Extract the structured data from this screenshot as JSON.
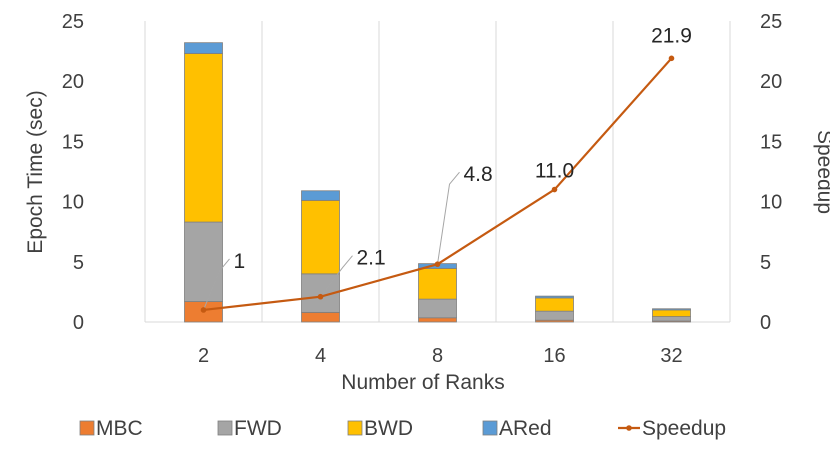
{
  "chart_data": {
    "type": "bar",
    "subtype": "stacked-bar-with-line-secondary-axis",
    "title": "",
    "categories": [
      "2",
      "4",
      "8",
      "16",
      "32"
    ],
    "xlabel": "Number of Ranks",
    "ylabel": "Epoch Time (sec)",
    "y2label": "Speedup",
    "ylim": [
      0,
      25
    ],
    "y2lim": [
      0,
      25
    ],
    "yticks": [
      "0",
      "5",
      "10",
      "15",
      "20",
      "25"
    ],
    "y2ticks": [
      "0",
      "5",
      "10",
      "15",
      "20",
      "25"
    ],
    "grid": "vertical",
    "legend_position": "bottom",
    "series": [
      {
        "name": "MBC",
        "kind": "bar",
        "color": "#ED7D31",
        "values": [
          1.7,
          0.8,
          0.35,
          0.15,
          0.08
        ]
      },
      {
        "name": "FWD",
        "kind": "bar",
        "color": "#A5A5A5",
        "values": [
          6.6,
          3.2,
          1.55,
          0.75,
          0.37
        ]
      },
      {
        "name": "BWD",
        "kind": "bar",
        "color": "#FFC000",
        "values": [
          14.0,
          6.1,
          2.55,
          1.1,
          0.55
        ]
      },
      {
        "name": "ARed",
        "kind": "bar",
        "color": "#5B9BD5",
        "values": [
          0.9,
          0.8,
          0.4,
          0.15,
          0.1
        ]
      },
      {
        "name": "Speedup",
        "kind": "line",
        "axis": "secondary",
        "color": "#C55A11",
        "values": [
          1,
          2.1,
          4.8,
          11.0,
          21.9
        ]
      }
    ],
    "data_labels": [
      "1",
      "2.1",
      "4.8",
      "11.0",
      "21.9"
    ]
  }
}
